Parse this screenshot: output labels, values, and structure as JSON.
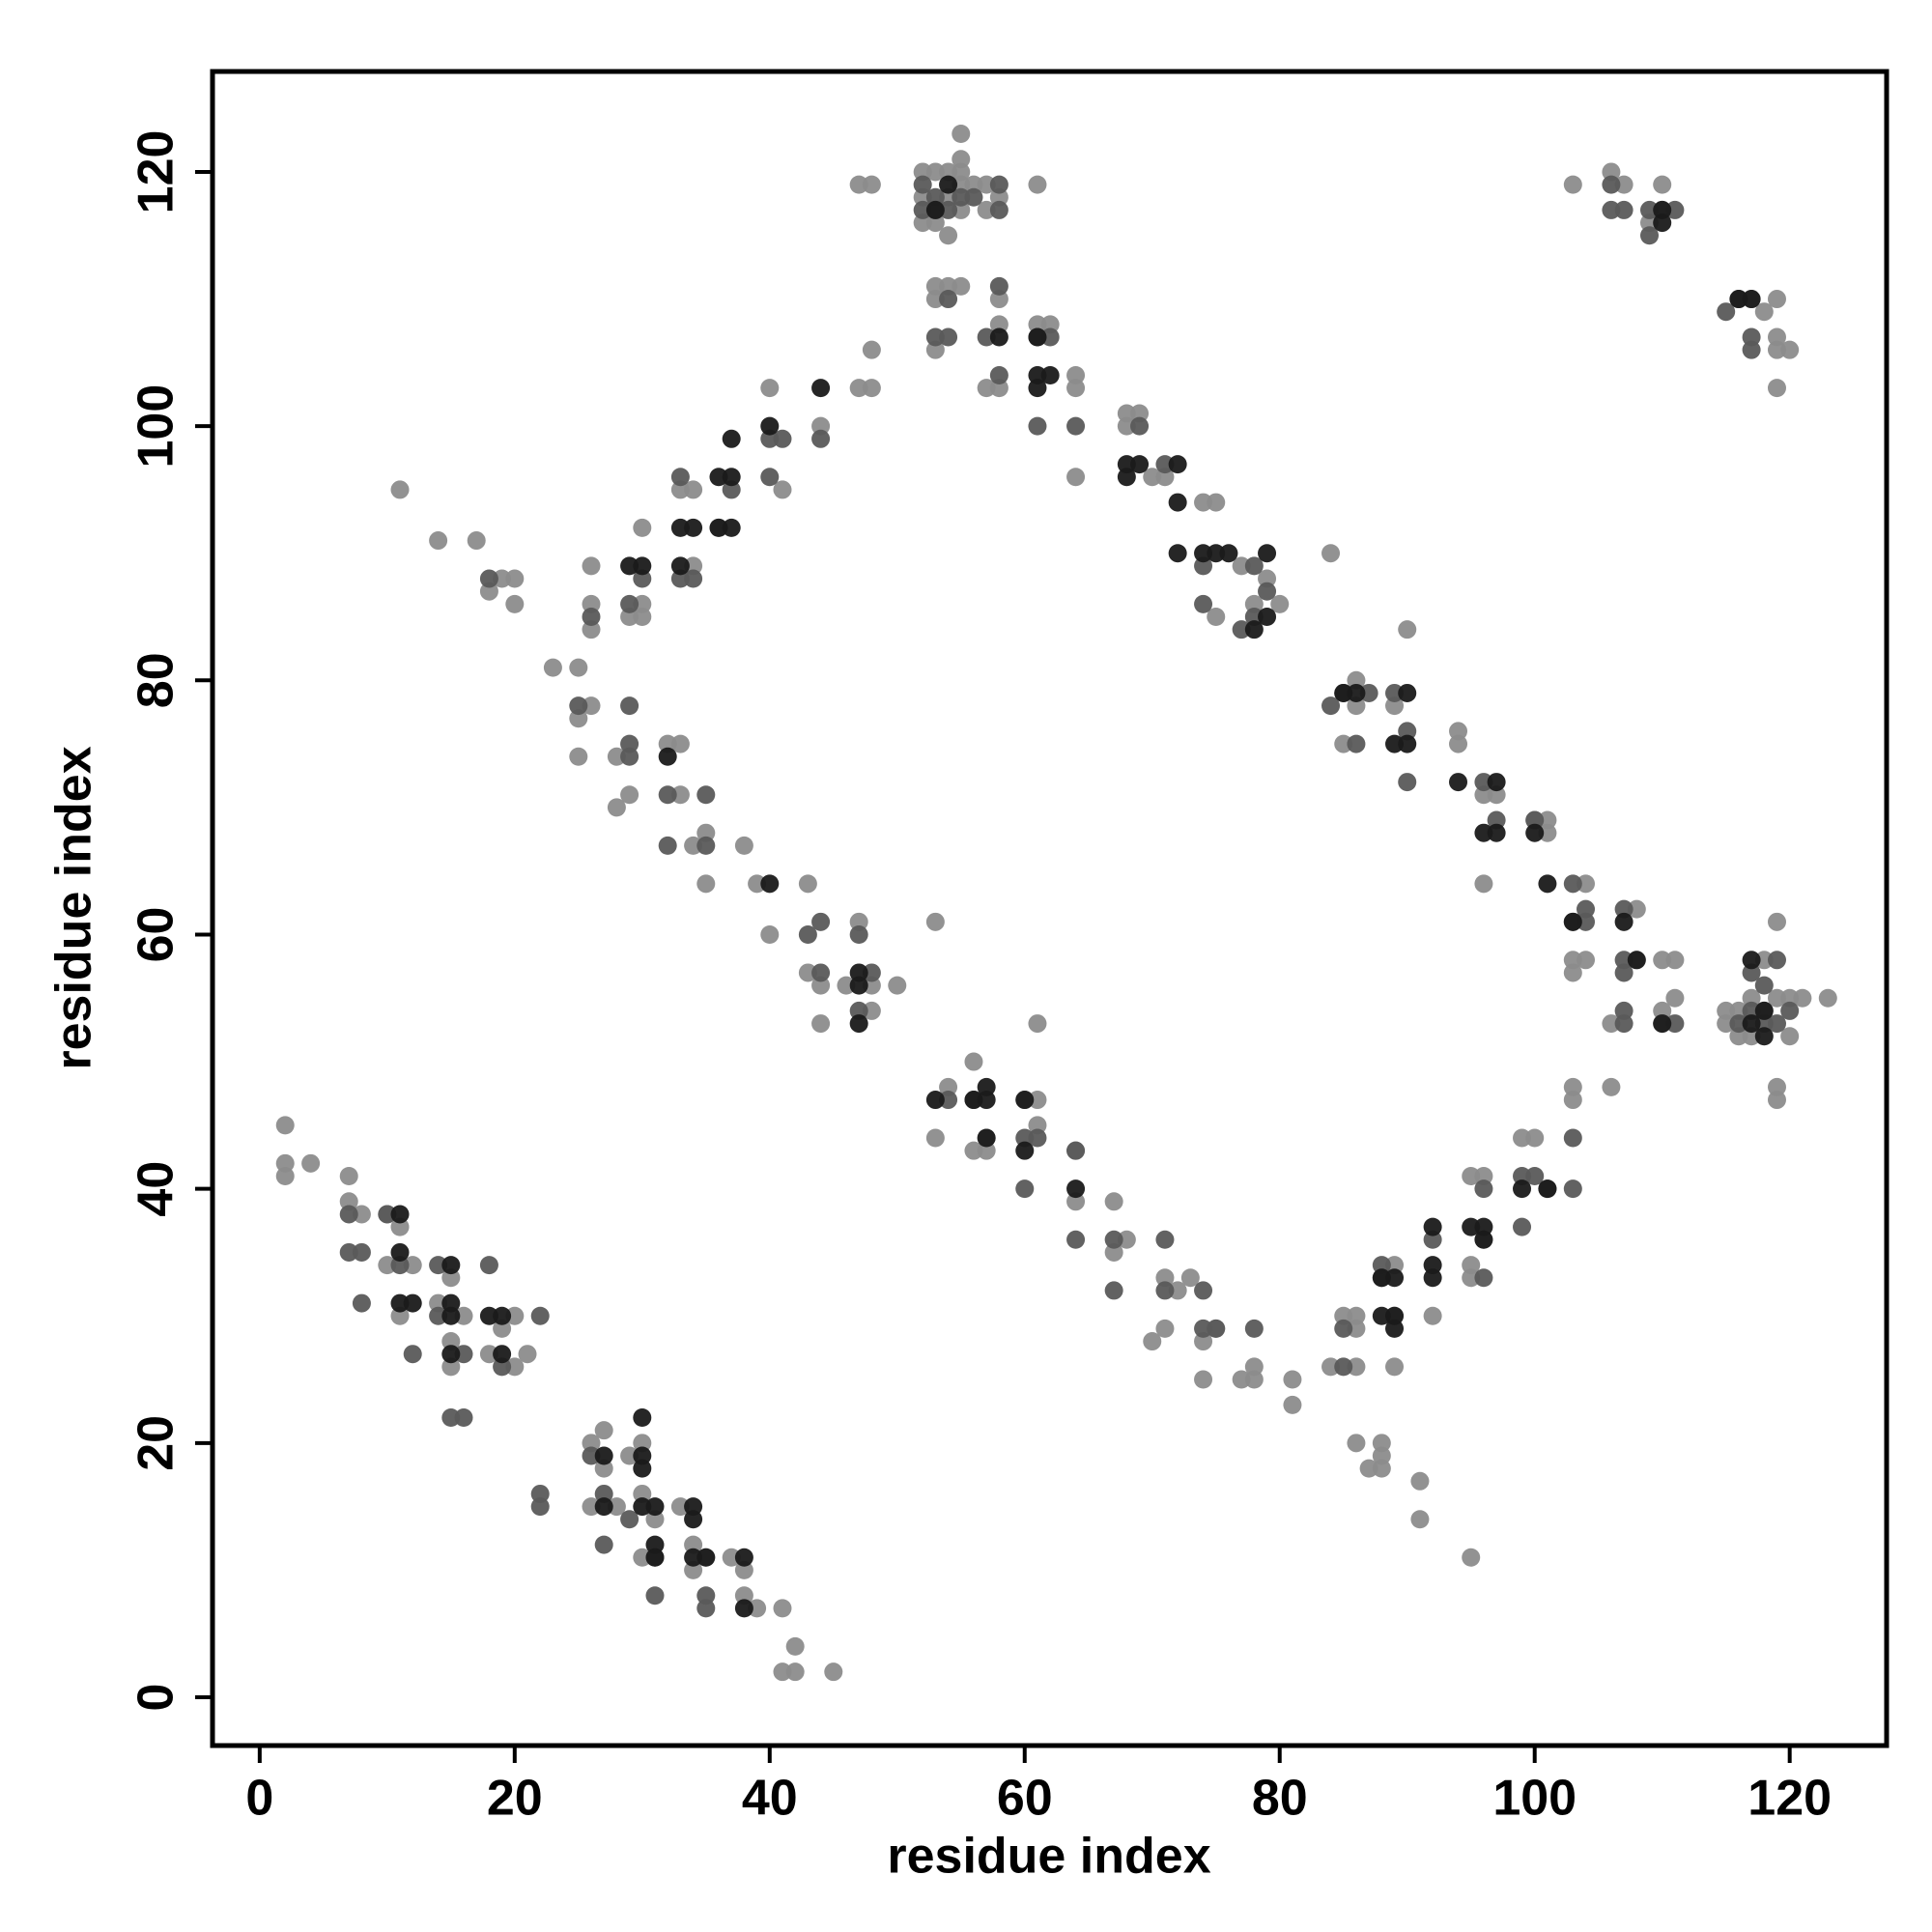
{
  "chart_data": {
    "type": "scatter",
    "x_label": "residue index",
    "y_label": "residue index",
    "xlim": [
      -3.7,
      127.6
    ],
    "ylim": [
      -3.8,
      127.9
    ],
    "xticks": [
      0,
      20,
      40,
      60,
      80,
      100,
      120
    ],
    "yticks": [
      0,
      20,
      40,
      60,
      80,
      100,
      120
    ],
    "series": [
      {
        "color": "#8c8c8c",
        "x": [
          2,
          2,
          2,
          4,
          7,
          7,
          8,
          10,
          11,
          10,
          11,
          12,
          14,
          15,
          15,
          15,
          16,
          18,
          19,
          20,
          20,
          21,
          26,
          27,
          26,
          27,
          29,
          30,
          30,
          30,
          31,
          33,
          34,
          34,
          35,
          37,
          38,
          38,
          39,
          41,
          42,
          41,
          42,
          45,
          28,
          11,
          14,
          17,
          18,
          19,
          20,
          20,
          23,
          25,
          25,
          26,
          25,
          28,
          28,
          29,
          32,
          33,
          33,
          34,
          35,
          35,
          38,
          39,
          40,
          43,
          44,
          44,
          48,
          48,
          50,
          47,
          43,
          46,
          61,
          26,
          26,
          29,
          30,
          30,
          33,
          34,
          34,
          36,
          40,
          41,
          44,
          47,
          48,
          48,
          47,
          48,
          26,
          30,
          52,
          53,
          54,
          55,
          52,
          54,
          55,
          56,
          53,
          54,
          55,
          55,
          57,
          58,
          61,
          53,
          53,
          54,
          55,
          53,
          57,
          58,
          58,
          58,
          57,
          52,
          55,
          61,
          62,
          64,
          64,
          64,
          68,
          69,
          70,
          71,
          74,
          75,
          75,
          77,
          78,
          79,
          80,
          84,
          68,
          85,
          86,
          86,
          89,
          90,
          94,
          94,
          96,
          97,
          96,
          100,
          101,
          101,
          103,
          103,
          104,
          104,
          106,
          108,
          108,
          110,
          111,
          111,
          110,
          110,
          115,
          115,
          116,
          117,
          118,
          118,
          119,
          119,
          119,
          119,
          120,
          120,
          121,
          123,
          116,
          117,
          53,
          54,
          56,
          56,
          57,
          57,
          60,
          61,
          61,
          64,
          64,
          67,
          67,
          68,
          70,
          71,
          71,
          72,
          73,
          74,
          74,
          75,
          77,
          78,
          78,
          81,
          81,
          53,
          84,
          85,
          86,
          86,
          86,
          87,
          88,
          88,
          88,
          89,
          89,
          91,
          91,
          92,
          95,
          95,
          95,
          95,
          96,
          99,
          100,
          103,
          103,
          106,
          96,
          86,
          89,
          103,
          106,
          107,
          109,
          110,
          117,
          118,
          119,
          119,
          120,
          119,
          119,
          110
        ],
        "values": [
          45,
          42,
          41,
          42,
          41,
          39,
          38,
          38,
          37,
          34,
          30,
          34,
          31,
          33,
          28,
          26,
          30,
          27,
          29,
          30,
          26,
          27,
          20,
          21,
          15,
          18,
          19,
          20,
          16,
          11,
          14,
          15,
          12,
          10,
          11,
          11,
          10,
          8,
          7,
          7,
          4,
          2,
          2,
          2,
          15,
          95,
          91,
          91,
          87,
          88,
          88,
          86,
          81,
          81,
          77,
          78,
          74,
          74,
          70,
          71,
          75,
          71,
          75,
          67,
          68,
          64,
          67,
          64,
          60,
          64,
          56,
          53,
          54,
          56,
          56,
          61,
          57,
          56,
          53,
          89,
          84,
          85,
          86,
          92,
          95,
          95,
          89,
          92,
          103,
          95,
          100,
          103,
          103,
          106,
          119,
          119,
          86,
          85,
          120,
          120,
          120,
          120,
          118,
          118,
          119,
          119,
          116,
          115,
          121,
          123,
          119,
          118,
          119,
          111,
          110,
          111,
          111,
          106,
          103,
          103,
          108,
          110,
          117,
          116,
          117,
          108,
          108,
          104,
          103,
          96,
          101,
          101,
          96,
          96,
          94,
          94,
          85,
          89,
          86,
          88,
          86,
          90,
          100,
          75,
          80,
          78,
          78,
          84,
          76,
          75,
          71,
          71,
          64,
          69,
          68,
          69,
          58,
          57,
          64,
          58,
          53,
          62,
          58,
          58,
          58,
          55,
          53,
          54,
          54,
          53,
          52,
          55,
          58,
          54,
          61,
          55,
          48,
          47,
          55,
          52,
          55,
          55,
          54,
          52,
          44,
          48,
          50,
          43,
          43,
          44,
          47,
          45,
          47,
          43,
          39,
          39,
          35,
          36,
          28,
          29,
          33,
          32,
          33,
          28,
          25,
          29,
          25,
          25,
          26,
          25,
          23,
          61,
          26,
          30,
          30,
          29,
          20,
          18,
          20,
          19,
          18,
          26,
          34,
          17,
          14,
          30,
          34,
          33,
          41,
          11,
          41,
          44,
          44,
          48,
          47,
          48,
          36,
          26,
          30,
          119,
          120,
          119,
          116,
          119,
          110,
          109,
          110,
          107,
          106,
          106,
          103,
          117
        ]
      },
      {
        "color": "#5a5a5a",
        "x": [
          7,
          7,
          8,
          8,
          10,
          11,
          12,
          14,
          14,
          15,
          16,
          16,
          18,
          19,
          22,
          22,
          22,
          26,
          27,
          27,
          31,
          35,
          35,
          29,
          31,
          18,
          25,
          29,
          29,
          29,
          32,
          32,
          35,
          35,
          43,
          44,
          44,
          47,
          47,
          48,
          26,
          29,
          30,
          33,
          34,
          33,
          37,
          40,
          41,
          44,
          40,
          52,
          53,
          54,
          55,
          53,
          52,
          58,
          58,
          53,
          54,
          54,
          58,
          57,
          58,
          56,
          61,
          62,
          61,
          64,
          69,
          71,
          74,
          74,
          77,
          78,
          79,
          78,
          84,
          85,
          86,
          87,
          89,
          90,
          90,
          96,
          97,
          100,
          103,
          103,
          104,
          104,
          107,
          107,
          107,
          107,
          107,
          111,
          117,
          117,
          118,
          119,
          119,
          120,
          118,
          116,
          54,
          56,
          60,
          60,
          61,
          64,
          64,
          67,
          67,
          71,
          71,
          74,
          74,
          75,
          78,
          85,
          85,
          88,
          88,
          92,
          96,
          96,
          99,
          99,
          100,
          101,
          103,
          103,
          106,
          106,
          107,
          109,
          109,
          111,
          115,
          116,
          117,
          117
        ],
        "values": [
          38,
          35,
          35,
          31,
          38,
          34,
          27,
          34,
          30,
          22,
          22,
          27,
          34,
          26,
          30,
          16,
          15,
          19,
          12,
          16,
          8,
          8,
          7,
          14,
          11,
          88,
          78,
          78,
          75,
          74,
          71,
          67,
          67,
          71,
          60,
          61,
          57,
          60,
          54,
          57,
          85,
          86,
          88,
          88,
          88,
          96,
          95,
          96,
          99,
          99,
          99,
          119,
          118,
          117,
          118,
          117,
          117,
          119,
          117,
          107,
          107,
          110,
          111,
          107,
          104,
          118,
          107,
          107,
          100,
          100,
          100,
          97,
          86,
          89,
          84,
          85,
          87,
          89,
          78,
          79,
          75,
          79,
          79,
          76,
          72,
          72,
          69,
          69,
          64,
          61,
          62,
          61,
          62,
          58,
          57,
          54,
          53,
          53,
          57,
          54,
          53,
          53,
          58,
          54,
          56,
          53,
          47,
          47,
          44,
          40,
          44,
          43,
          36,
          32,
          36,
          36,
          32,
          32,
          29,
          29,
          29,
          29,
          26,
          34,
          33,
          36,
          33,
          40,
          41,
          37,
          41,
          40,
          40,
          44,
          119,
          117,
          117,
          117,
          115,
          117,
          109,
          110,
          107,
          106
        ]
      },
      {
        "color": "#1a1a1a",
        "x": [
          11,
          11,
          11,
          12,
          15,
          15,
          15,
          15,
          19,
          19,
          27,
          30,
          30,
          30,
          31,
          31,
          31,
          34,
          34,
          34,
          35,
          38,
          38,
          27,
          30,
          18,
          40,
          47,
          47,
          47,
          32,
          29,
          30,
          33,
          34,
          33,
          36,
          37,
          37,
          37,
          40,
          44,
          36,
          53,
          54,
          58,
          61,
          61,
          62,
          68,
          69,
          68,
          72,
          72,
          72,
          74,
          75,
          76,
          79,
          78,
          79,
          61,
          85,
          89,
          90,
          90,
          94,
          96,
          97,
          97,
          100,
          101,
          103,
          107,
          108,
          110,
          86,
          117,
          117,
          118,
          118,
          53,
          56,
          57,
          57,
          60,
          60,
          57,
          64,
          88,
          89,
          89,
          89,
          92,
          92,
          92,
          95,
          96,
          96,
          99,
          101,
          88,
          110,
          110,
          117,
          116
        ],
        "values": [
          38,
          35,
          31,
          31,
          34,
          31,
          30,
          27,
          30,
          27,
          19,
          19,
          18,
          15,
          15,
          12,
          11,
          15,
          14,
          11,
          11,
          11,
          7,
          15,
          22,
          30,
          64,
          53,
          57,
          56,
          74,
          89,
          89,
          92,
          92,
          89,
          96,
          96,
          92,
          99,
          100,
          103,
          92,
          117,
          119,
          107,
          104,
          103,
          104,
          97,
          97,
          96,
          97,
          94,
          90,
          90,
          90,
          90,
          90,
          84,
          85,
          107,
          79,
          75,
          79,
          75,
          72,
          68,
          72,
          68,
          68,
          64,
          61,
          61,
          58,
          53,
          79,
          58,
          53,
          54,
          52,
          47,
          47,
          47,
          48,
          47,
          43,
          44,
          40,
          30,
          30,
          33,
          29,
          37,
          34,
          33,
          37,
          37,
          36,
          40,
          40,
          33,
          117,
          116,
          110,
          110
        ]
      }
    ]
  }
}
